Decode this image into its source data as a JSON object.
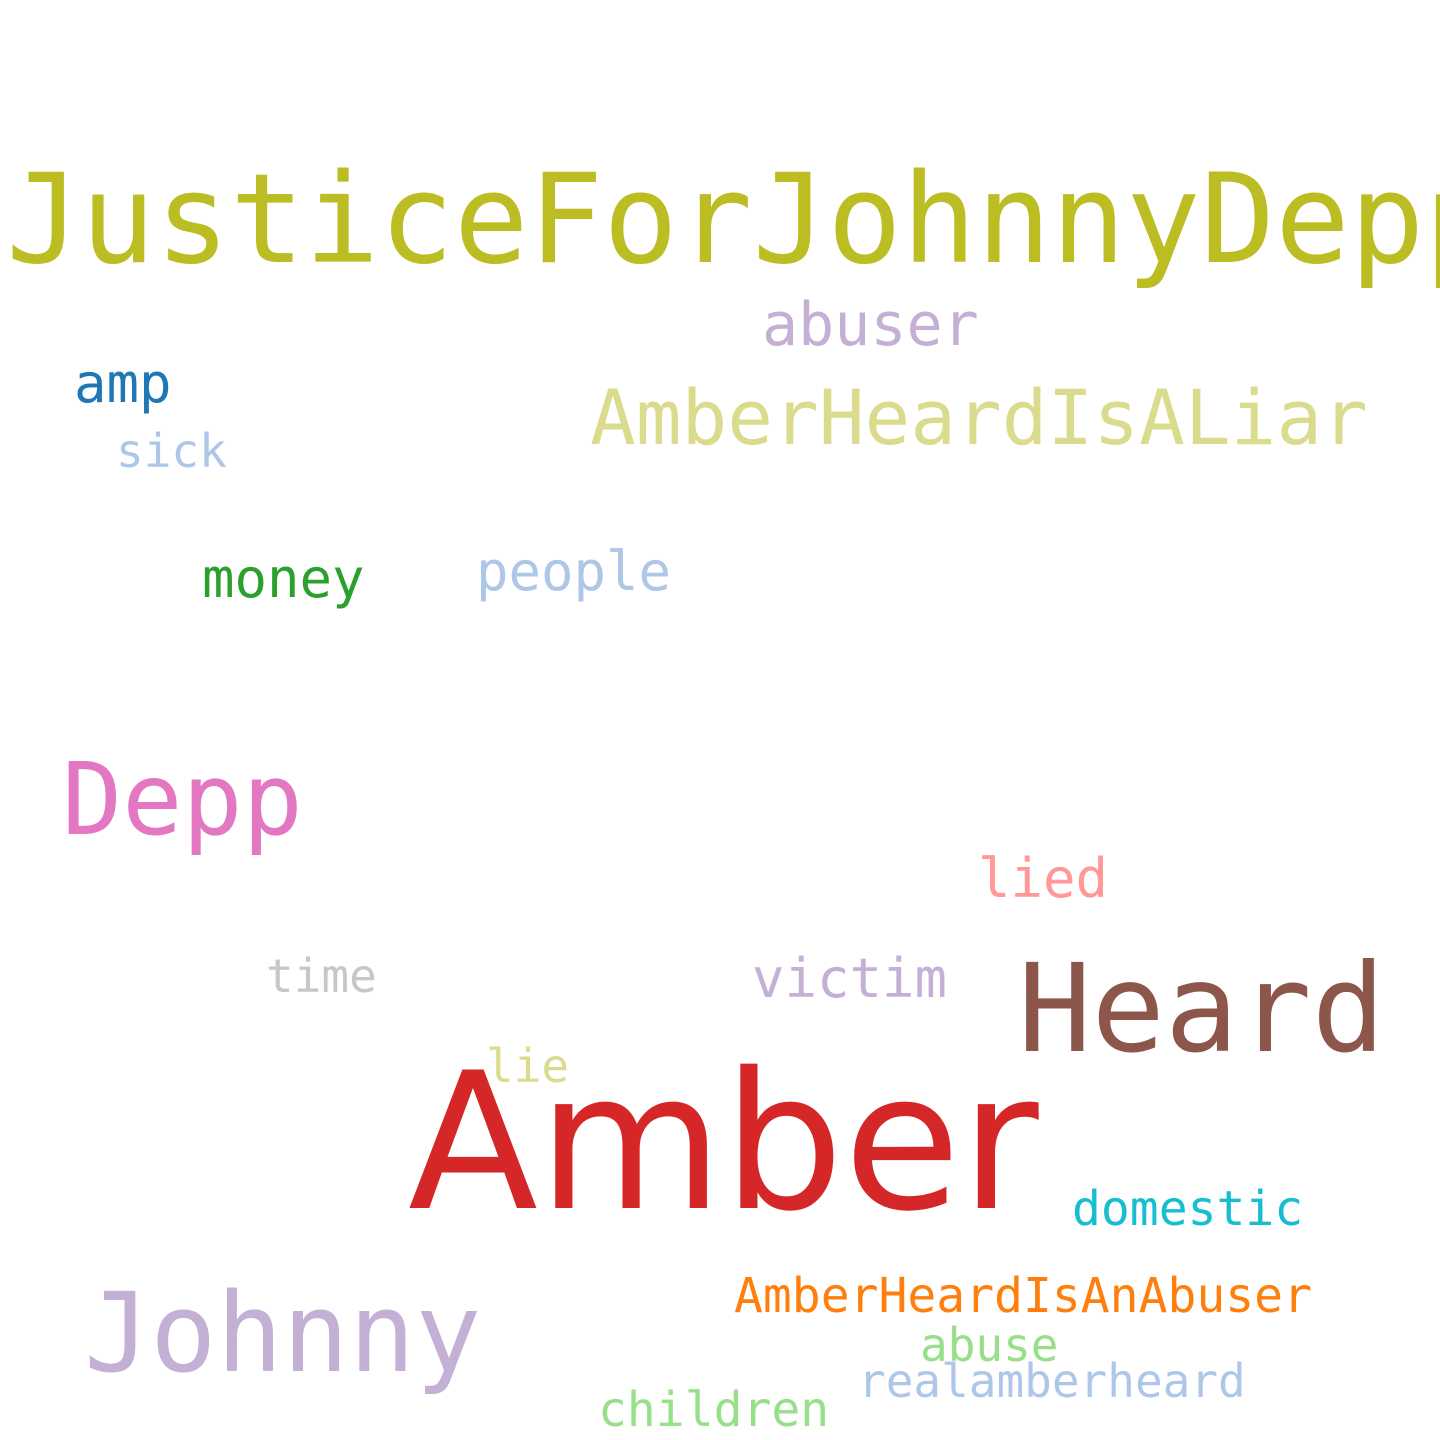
{
  "words": [
    {
      "text": "JusticeForJohnnyDepp",
      "color": "#bcbd22"
    },
    {
      "text": "abuser",
      "color": "#c5b0d5"
    },
    {
      "text": "amp",
      "color": "#1f77b4"
    },
    {
      "text": "AmberHeardIsALiar",
      "color": "#dbdb8d"
    },
    {
      "text": "sick",
      "color": "#aec7e8"
    },
    {
      "text": "money",
      "color": "#2ca02c"
    },
    {
      "text": "people",
      "color": "#aec7e8"
    },
    {
      "text": "Depp",
      "color": "#e377c2"
    },
    {
      "text": "lied",
      "color": "#ff9896"
    },
    {
      "text": "time",
      "color": "#c7c7c7"
    },
    {
      "text": "victim",
      "color": "#c5b0d5"
    },
    {
      "text": "Heard",
      "color": "#8c564b"
    },
    {
      "text": "lie",
      "color": "#dbdb8d"
    },
    {
      "text": "Amber",
      "color": "#d62728"
    },
    {
      "text": "domestic",
      "color": "#17becf"
    },
    {
      "text": "AmberHeardIsAnAbuser",
      "color": "#ff7f0e"
    },
    {
      "text": "Johnny",
      "color": "#c5b0d5"
    },
    {
      "text": "abuse",
      "color": "#98df8a"
    },
    {
      "text": "realamberheard",
      "color": "#aec7e8"
    },
    {
      "text": "children",
      "color": "#98df8a"
    }
  ]
}
